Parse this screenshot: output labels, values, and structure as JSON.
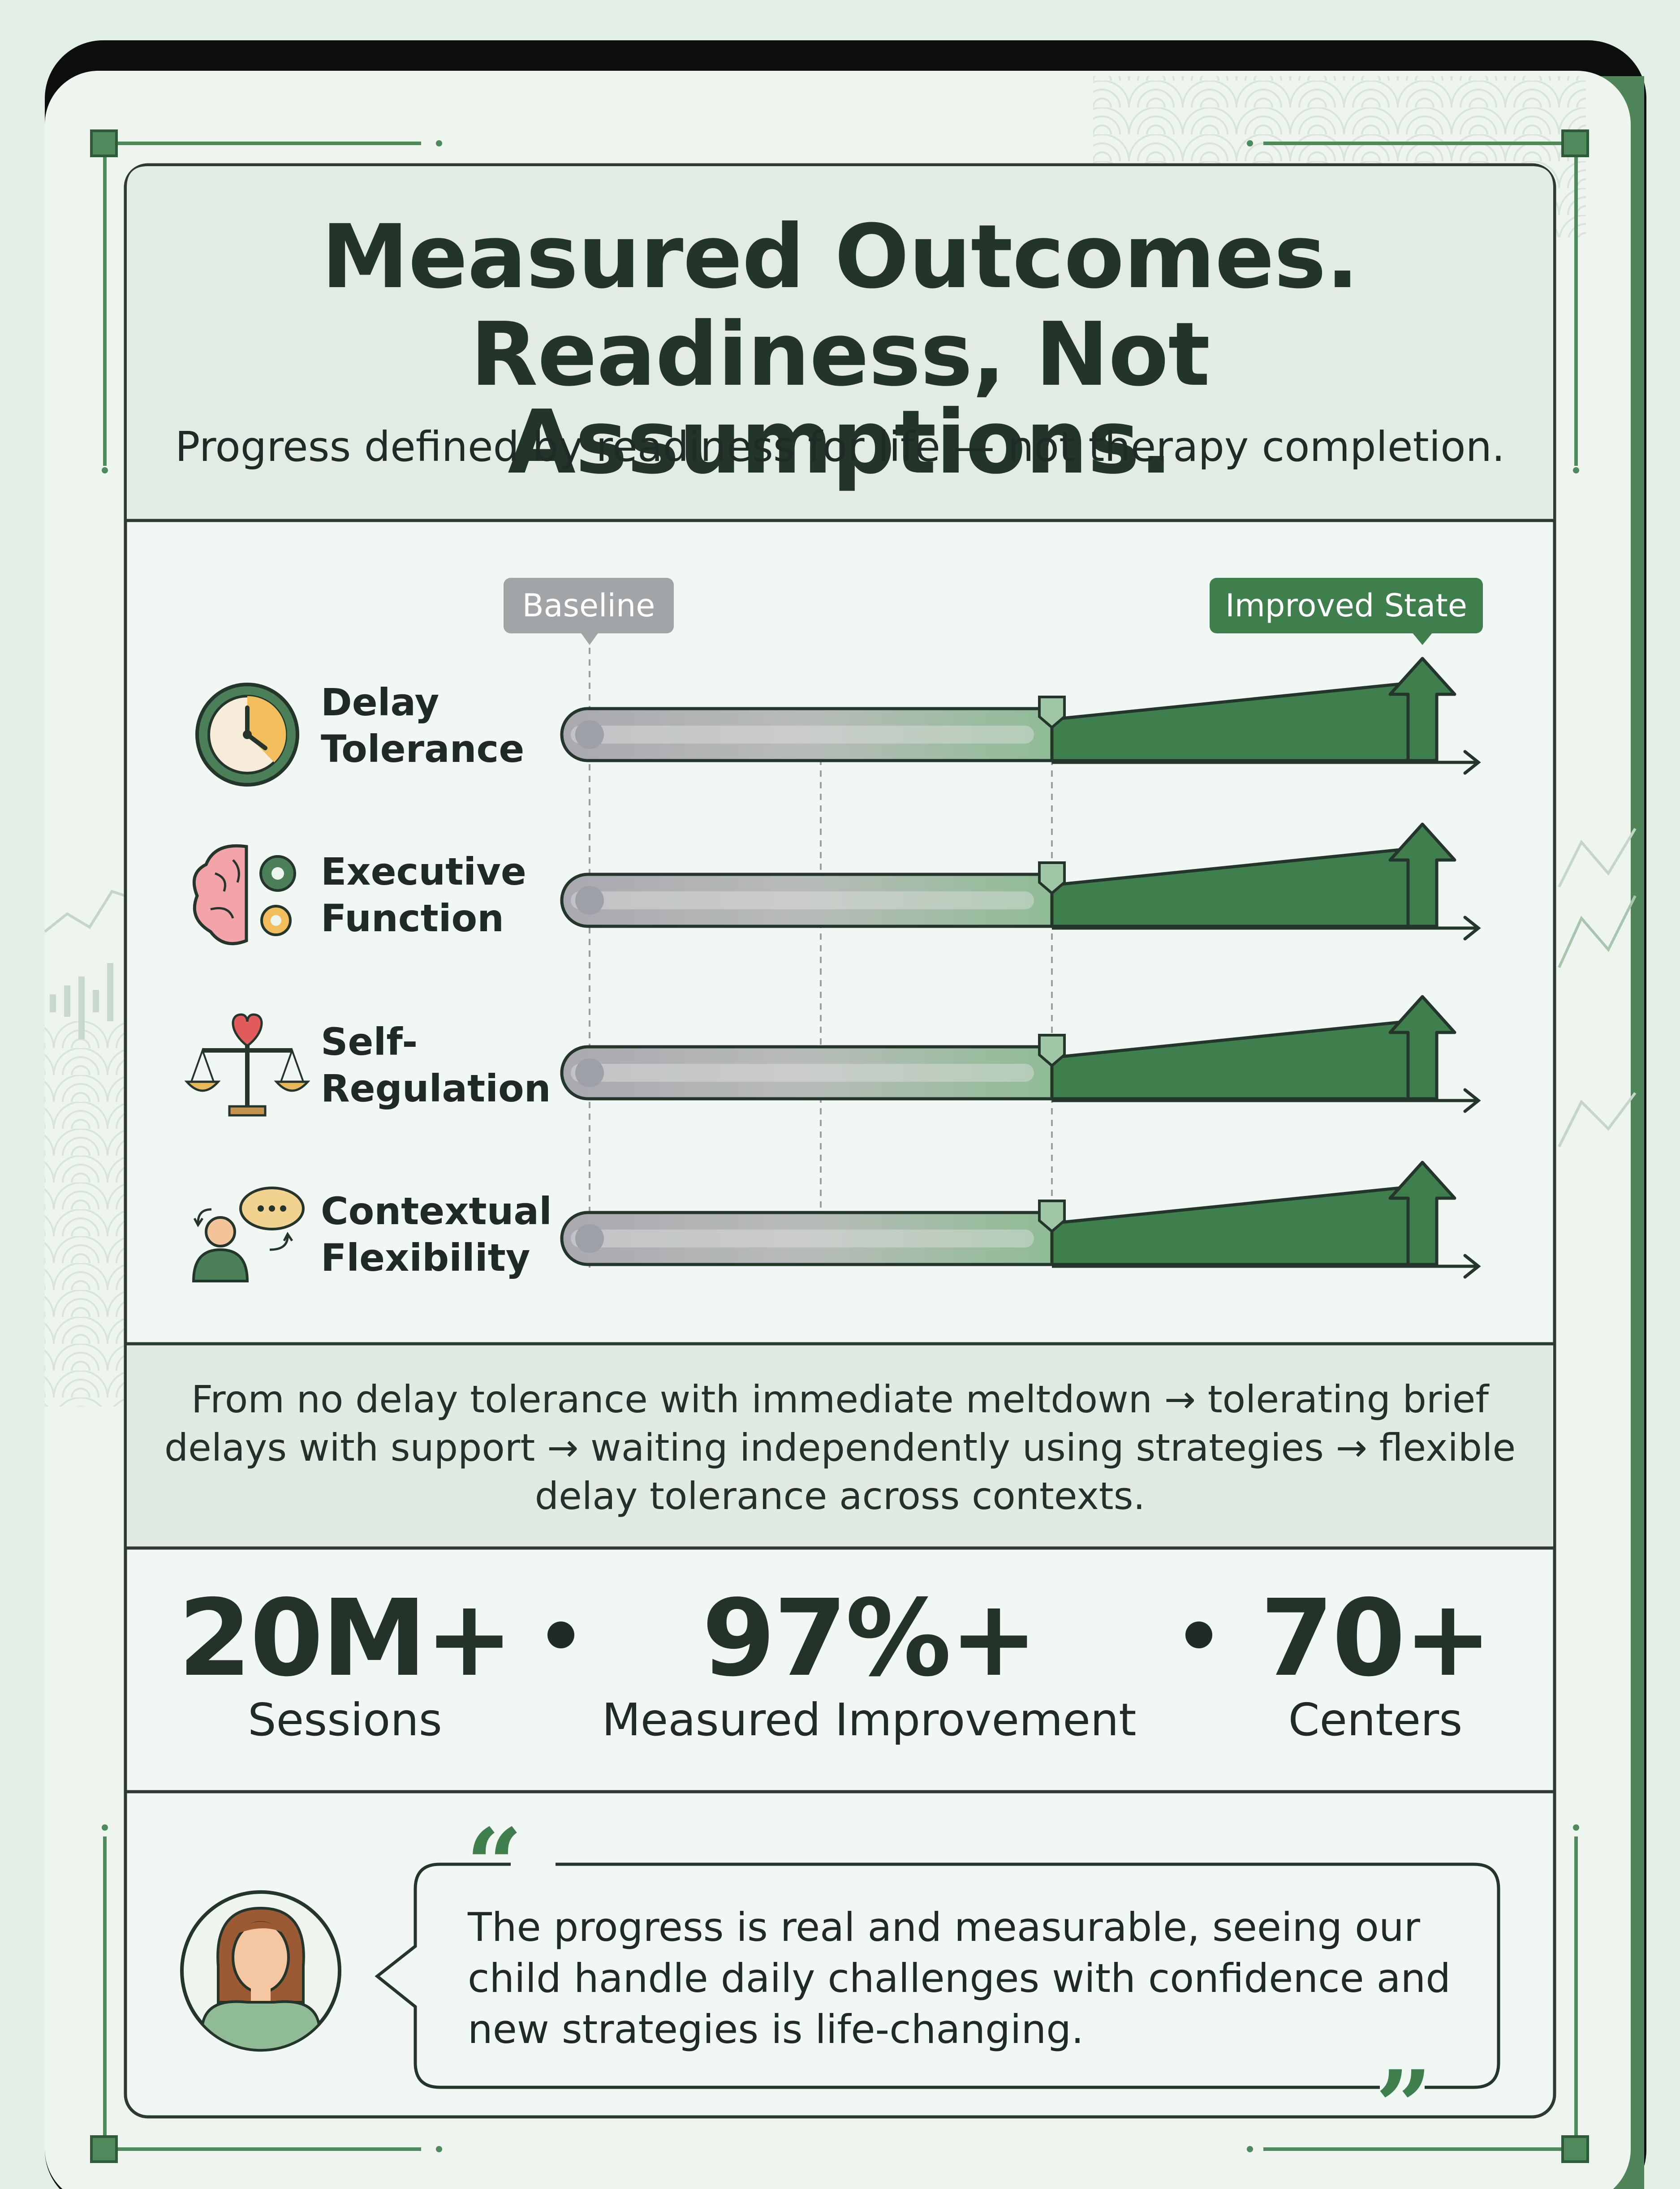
{
  "header": {
    "title_line1": "Measured Outcomes.",
    "title_line2": "Readiness, Not Assumptions.",
    "subtitle": "Progress defined by readiness for life — not therapy completion."
  },
  "chart": {
    "start_label": "Baseline",
    "end_label": "Improved State",
    "rows": [
      {
        "label": "Delay\nTolerance",
        "icon": "clock-icon"
      },
      {
        "label": "Executive\nFunction",
        "icon": "brain-gears-icon"
      },
      {
        "label": "Self-\nRegulation",
        "icon": "balance-scale-heart-icon"
      },
      {
        "label": "Contextual\nFlexibility",
        "icon": "person-speech-bubble-icon"
      }
    ]
  },
  "progression_text": "From no delay tolerance with immediate meltdown → tolerating brief delays with support → waiting independently using strategies → flexible delay tolerance across contexts.",
  "stats": [
    {
      "value": "20M+",
      "label": "Sessions"
    },
    {
      "value": "97%+",
      "label": "Measured Improvement"
    },
    {
      "value": "70+",
      "label": "Centers"
    }
  ],
  "testimonial": {
    "quote": "The progress is real and measurable, seeing our child handle daily challenges with confidence and new strategies is life-changing.",
    "avatar_icon": "woman-avatar-icon",
    "open_quote_icon": "open-quote-icon",
    "close_quote_icon": "close-quote-icon"
  },
  "colors": {
    "accent_green": "#3f7f4d",
    "baseline_gray": "#a2a5a8",
    "background": "#eef5ef"
  }
}
